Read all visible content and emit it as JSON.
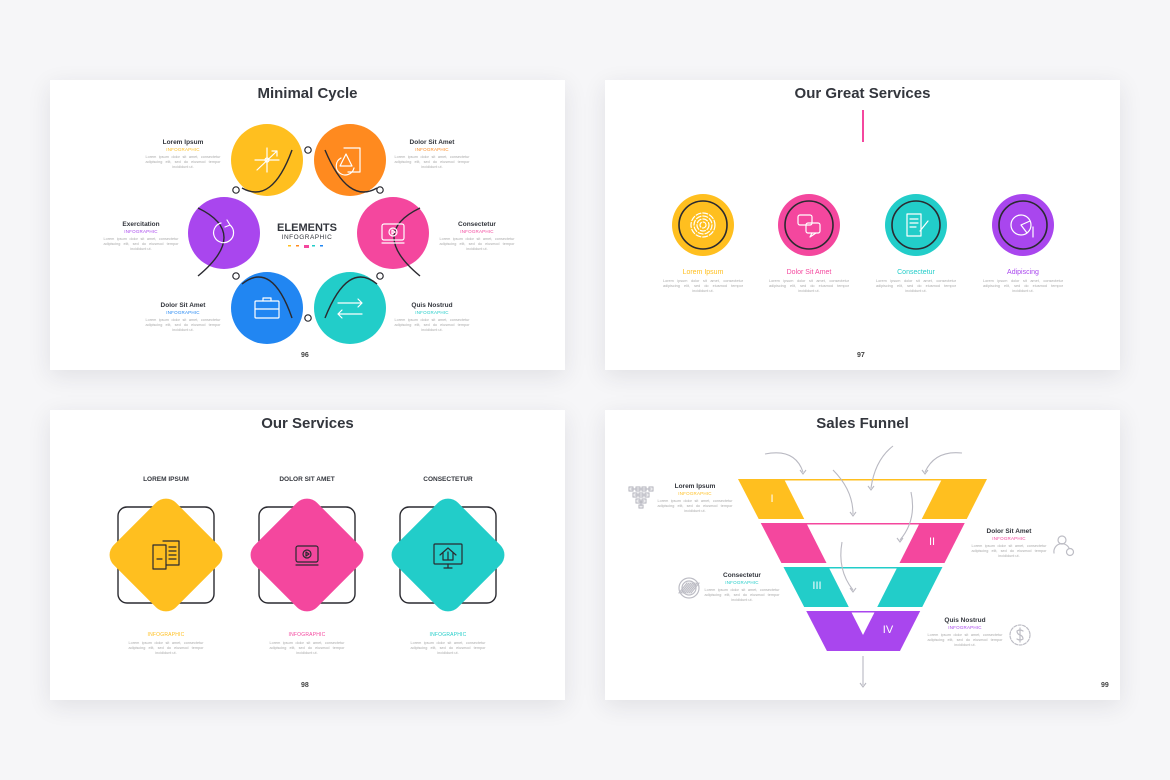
{
  "colors": {
    "yellow": "#ffbf1f",
    "orange": "#ff8a1f",
    "magenta": "#f4479e",
    "teal": "#22cdc9",
    "blue": "#2186f2",
    "purple": "#a946ee",
    "dark": "#33363d",
    "gray": "#b7b7bf"
  },
  "body_text": "Lorem ipsum dolor sit amet, consectetur adipiscing elit, sed do eiusmod tempor incididunt ut.",
  "slides": [
    {
      "title": "Minimal Cycle",
      "page": "96",
      "center": {
        "line1": "ELEMENTS",
        "line2": "INFOGRAPHIC"
      },
      "items": [
        {
          "heading": "Lorem Ipsum",
          "sub": "INFOGRAPHIC",
          "color": "#ffbf1f",
          "icon": "chart-arrow-icon"
        },
        {
          "heading": "Dolor Sit Amet",
          "sub": "INFOGRAPHIC",
          "color": "#ff8a1f",
          "icon": "pie-chart-document-icon"
        },
        {
          "heading": "Consectetur",
          "sub": "INFOGRAPHIC",
          "color": "#f4479e",
          "icon": "video-monitor-icon"
        },
        {
          "heading": "Quis Nostrud",
          "sub": "INFOGRAPHIC",
          "color": "#22cdc9",
          "icon": "exchange-arrows-icon"
        },
        {
          "heading": "Dolor Sit Amet",
          "sub": "INFOGRAPHIC",
          "color": "#2186f2",
          "icon": "briefcase-icon"
        },
        {
          "heading": "Exercitation",
          "sub": "INFOGRAPHIC",
          "color": "#a946ee",
          "icon": "refresh-icon"
        }
      ]
    },
    {
      "title": "Our Great Services",
      "page": "97",
      "items": [
        {
          "heading": "Lorem Ipsum",
          "color": "#ffbf1f",
          "icon": "fingerprint-icon"
        },
        {
          "heading": "Dolor Sit Amet",
          "color": "#f4479e",
          "icon": "chat-bubbles-icon"
        },
        {
          "heading": "Consectetur",
          "color": "#22cdc9",
          "icon": "document-pen-icon"
        },
        {
          "heading": "Adipiscing",
          "color": "#a946ee",
          "icon": "pie-chart-icon"
        }
      ]
    },
    {
      "title": "Our Services",
      "page": "98",
      "items": [
        {
          "heading": "LOREM IPSUM",
          "sub": "INFOGRAPHIC",
          "color": "#ffbf1f",
          "icon": "documents-icon"
        },
        {
          "heading": "DOLOR SIT AMET",
          "sub": "INFOGRAPHIC",
          "color": "#f4479e",
          "icon": "video-monitor-icon"
        },
        {
          "heading": "CONSECTETUR",
          "sub": "INFOGRAPHIC",
          "color": "#22cdc9",
          "icon": "monitor-house-dollar-icon"
        }
      ]
    },
    {
      "title": "Sales Funnel",
      "page": "99",
      "items": [
        {
          "numeral": "I",
          "heading": "Lorem Ipsum",
          "sub": "INFOGRAPHIC",
          "color": "#ffbf1f",
          "icon": "hierarchy-icon"
        },
        {
          "numeral": "II",
          "heading": "Dolor Sit Amet",
          "sub": "INFOGRAPHIC",
          "color": "#f4479e",
          "icon": "user-settings-icon"
        },
        {
          "numeral": "III",
          "heading": "Consectetur",
          "sub": "INFOGRAPHIC",
          "color": "#22cdc9",
          "icon": "striped-circle-icon"
        },
        {
          "numeral": "IV",
          "heading": "Quis Nostrud",
          "sub": "INFOGRAPHIC",
          "color": "#a946ee",
          "icon": "dollar-clock-icon"
        }
      ]
    }
  ]
}
